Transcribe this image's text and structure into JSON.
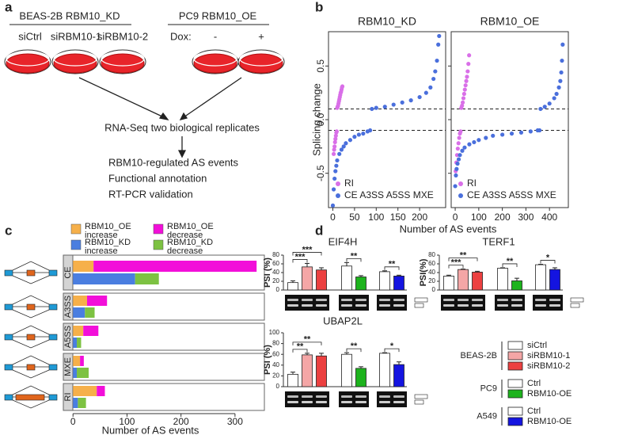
{
  "panel_labels": [
    "a",
    "b",
    "c",
    "d"
  ],
  "diagram": {
    "kd_title": "BEAS-2B RBM10_KD",
    "kd_samples": [
      "siCtrl",
      "siRBM10-1",
      "siRBM10-2"
    ],
    "oe_title": "PC9 RBM10_OE",
    "dox_label": "Dox:",
    "oe_samples": [
      "-",
      "+"
    ],
    "step1": "RNA-Seq two biological replicates",
    "outputs": [
      "RBM10-regulated AS events",
      "Functional annotation",
      "RT-PCR validation"
    ]
  },
  "chart_data": [
    {
      "type": "scatter",
      "title": "RBM10_KD",
      "ylabel": "Splicing change",
      "xlabel": "Number of AS events",
      "xlim": [
        -10,
        260
      ],
      "xticks": [
        0,
        50,
        100,
        150,
        200
      ],
      "ylim": [
        -0.82,
        0.82
      ],
      "yticks": [
        -0.5,
        {
          "value": 0,
          "label": "0.0"
        },
        0.5
      ],
      "thresholds": [
        -0.1,
        0.1
      ],
      "series": [
        {
          "name": "RI",
          "color": "#d96fe8",
          "x": [
            2,
            3,
            4,
            5,
            6,
            7,
            8,
            9,
            10,
            11,
            12,
            13,
            14,
            15,
            16,
            17,
            18,
            19,
            20,
            21,
            22
          ],
          "values": [
            -0.32,
            -0.28,
            -0.25,
            -0.21,
            -0.18,
            -0.15,
            -0.12,
            -0.11,
            0.11,
            0.12,
            0.13,
            0.15,
            0.17,
            0.19,
            0.21,
            0.23,
            0.25,
            0.26,
            0.28,
            0.3,
            0.31
          ]
        },
        {
          "name": "CE A3SS A5SS MXE",
          "color": "#4a6fdc",
          "x": [
            0,
            2,
            4,
            6,
            8,
            10,
            15,
            20,
            25,
            30,
            40,
            50,
            60,
            70,
            80,
            86,
            90,
            100,
            120,
            140,
            160,
            180,
            200,
            215,
            225,
            232,
            236,
            240,
            243,
            245
          ],
          "values": [
            -0.8,
            -0.65,
            -0.55,
            -0.48,
            -0.43,
            -0.38,
            -0.32,
            -0.28,
            -0.25,
            -0.22,
            -0.19,
            -0.16,
            -0.14,
            -0.13,
            -0.11,
            -0.1,
            0.1,
            0.11,
            0.12,
            0.14,
            0.16,
            0.18,
            0.21,
            0.25,
            0.3,
            0.38,
            0.45,
            0.55,
            0.7,
            0.78
          ]
        }
      ]
    },
    {
      "type": "scatter",
      "title": "RBM10_OE",
      "xlim": [
        -17,
        480
      ],
      "xticks": [
        0,
        100,
        200,
        300,
        400
      ],
      "ylim": [
        -0.82,
        0.82
      ],
      "yticks": [
        -0.5,
        0,
        0.5
      ],
      "thresholds": [
        -0.1,
        0.1
      ],
      "series": [
        {
          "name": "RI",
          "color": "#d96fe8",
          "x": [
            2,
            5,
            8,
            11,
            14,
            17,
            20,
            23,
            26,
            29,
            32,
            35,
            38,
            41,
            44,
            47,
            50,
            53,
            56,
            59
          ],
          "values": [
            -0.48,
            -0.4,
            -0.33,
            -0.27,
            -0.22,
            -0.17,
            -0.13,
            -0.11,
            0.11,
            0.13,
            0.16,
            0.2,
            0.24,
            0.28,
            0.32,
            0.36,
            0.4,
            0.45,
            0.52,
            0.6
          ]
        },
        {
          "name": "CE A3SS A5SS MXE",
          "color": "#4a6fdc",
          "x": [
            0,
            3,
            6,
            10,
            15,
            20,
            30,
            40,
            60,
            80,
            100,
            130,
            160,
            200,
            240,
            280,
            320,
            350,
            358,
            362,
            380,
            400,
            420,
            430,
            440,
            446,
            450,
            453,
            456
          ],
          "values": [
            -0.62,
            -0.52,
            -0.46,
            -0.41,
            -0.37,
            -0.33,
            -0.29,
            -0.26,
            -0.23,
            -0.21,
            -0.19,
            -0.17,
            -0.15,
            -0.14,
            -0.13,
            -0.12,
            -0.11,
            -0.1,
            -0.1,
            0.1,
            0.12,
            0.15,
            0.2,
            0.24,
            0.3,
            0.36,
            0.44,
            0.55,
            0.7
          ]
        }
      ]
    },
    {
      "type": "hbar",
      "xlabel": "Number of AS events",
      "categories": [
        "CE",
        "A3SS",
        "A5SS",
        "MXE",
        "RI"
      ],
      "xlim": [
        -15,
        350
      ],
      "xticks": [
        0,
        100,
        200,
        300
      ],
      "series": [
        {
          "name": "RBM10_OE increase",
          "color": "#f6b04a",
          "values": [
            38,
            26,
            19,
            13,
            44
          ]
        },
        {
          "name": "RBM10_OE decrease",
          "color": "#f20fd9",
          "values": [
            302,
            37,
            28,
            7,
            15
          ]
        },
        {
          "name": "RBM10_KD increase",
          "color": "#4a7ee0",
          "values": [
            115,
            22,
            7,
            7,
            9
          ]
        },
        {
          "name": "RBM10_KD decrease",
          "color": "#7dc242",
          "values": [
            44,
            18,
            8,
            22,
            15
          ]
        }
      ]
    },
    {
      "type": "errbar",
      "title": "EIF4H",
      "ylabel": "PSI (%)",
      "ylim": [
        0,
        80
      ],
      "yticks": [
        0,
        20,
        40,
        60,
        80
      ],
      "values": [
        17,
        53,
        46,
        55,
        30,
        42,
        32
      ],
      "errors": [
        4,
        8,
        5,
        8,
        3,
        2,
        2
      ],
      "colors": [
        "#ffffff",
        "#f4a6a6",
        "#ec4040",
        "#ffffff",
        "#1db31d",
        "#ffffff",
        "#1414e0"
      ],
      "significance": [
        "***",
        "***",
        "**",
        "**"
      ]
    },
    {
      "type": "errbar",
      "title": "TERF1",
      "ylabel": "PSI(%)",
      "ylim": [
        0,
        80
      ],
      "yticks": [
        0,
        20,
        40,
        60,
        80
      ],
      "values": [
        32,
        47,
        41,
        50,
        21,
        58,
        47
      ],
      "errors": [
        2,
        1,
        2,
        1,
        6,
        1,
        4
      ],
      "colors": [
        "#ffffff",
        "#f4a6a6",
        "#ec4040",
        "#ffffff",
        "#1db31d",
        "#ffffff",
        "#1414e0"
      ],
      "significance": [
        "***",
        "**",
        "**",
        "*"
      ]
    },
    {
      "type": "errbar",
      "title": "UBAP2L",
      "ylabel": "PSI (%)",
      "ylim": [
        0,
        100
      ],
      "yticks": [
        0,
        20,
        40,
        60,
        80,
        100
      ],
      "values": [
        23,
        59,
        57,
        60,
        34,
        62,
        41
      ],
      "errors": [
        4,
        3,
        5,
        3,
        3,
        1,
        5
      ],
      "colors": [
        "#ffffff",
        "#f4a6a6",
        "#ec4040",
        "#ffffff",
        "#1db31d",
        "#ffffff",
        "#1414e0"
      ],
      "significance": [
        "**",
        "**",
        "**",
        "*"
      ]
    }
  ],
  "legend_d": [
    {
      "name": "BEAS-2B",
      "entries": [
        "siCtrl",
        "siRBM10-1",
        "siRBM10-2"
      ]
    },
    {
      "name": "PC9",
      "entries": [
        "Ctrl",
        "RBM10-OE"
      ]
    },
    {
      "name": "A549",
      "entries": [
        "Ctrl",
        "RBM10-OE"
      ]
    }
  ]
}
